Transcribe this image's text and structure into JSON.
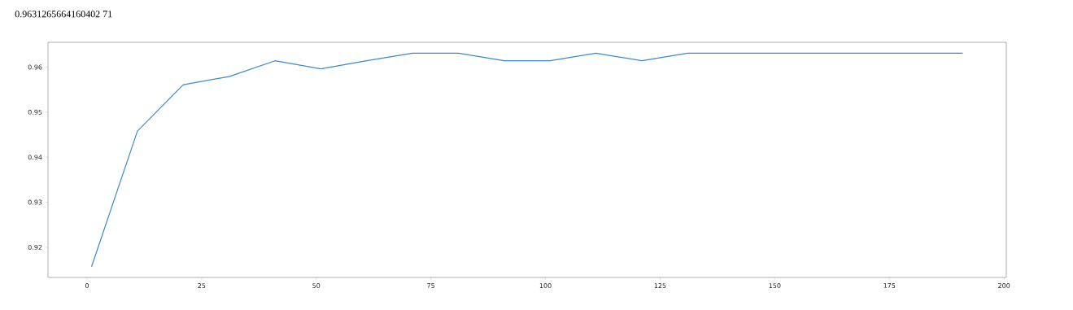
{
  "chart_data": {
    "type": "line",
    "annotations": [
      "0.9631265664160402 71"
    ],
    "x": [
      1,
      11,
      21,
      31,
      41,
      51,
      61,
      71,
      81,
      91,
      101,
      111,
      121,
      131,
      141,
      151,
      161,
      171,
      181,
      191
    ],
    "series": [
      {
        "color": "#3d8ac4",
        "values": [
          0.9157,
          0.9458,
          0.9561,
          0.9579,
          0.9614,
          0.9596,
          0.9614,
          0.9631,
          0.9631,
          0.9614,
          0.9614,
          0.9631,
          0.9614,
          0.9631,
          0.9631,
          0.9631,
          0.9631,
          0.9631,
          0.9631,
          0.9631
        ]
      }
    ],
    "xlim": [
      -8.5,
      200.5
    ],
    "ylim": [
      0.9133,
      0.9655
    ],
    "xticks": [
      0,
      25,
      50,
      75,
      100,
      125,
      150,
      175,
      200
    ],
    "yticks": [
      0.92,
      0.93,
      0.94,
      0.95,
      0.96
    ]
  }
}
